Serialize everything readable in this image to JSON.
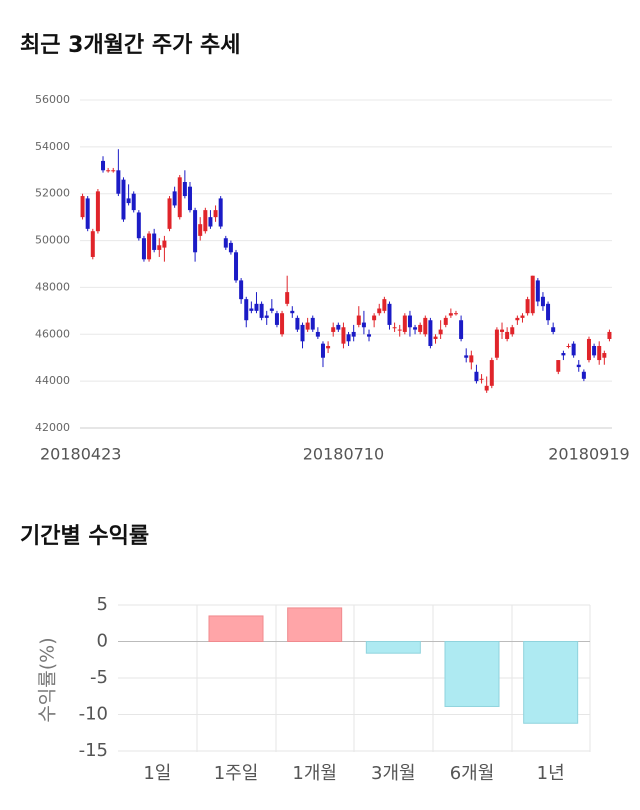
{
  "chart_data": [
    {
      "type": "candlestick",
      "title": "최근 3개월간 주가 추세",
      "categories": [
        "20180423",
        null,
        null,
        null,
        null,
        null,
        null,
        null,
        null,
        null,
        null,
        null,
        null,
        null,
        null,
        null,
        null,
        null,
        null,
        null,
        null,
        null,
        null,
        null,
        null,
        null,
        null,
        null,
        null,
        null,
        null,
        null,
        null,
        null,
        null,
        null,
        null,
        null,
        null,
        null,
        null,
        null,
        null,
        null,
        null,
        null,
        null,
        null,
        null,
        null,
        null,
        "20180710",
        null,
        null,
        null,
        null,
        null,
        null,
        null,
        null,
        null,
        null,
        null,
        null,
        null,
        null,
        null,
        null,
        null,
        null,
        null,
        null,
        null,
        null,
        null,
        null,
        null,
        null,
        null,
        null,
        null,
        null,
        null,
        null,
        null,
        null,
        null,
        null,
        null,
        null,
        null,
        null,
        null,
        null,
        null,
        null,
        null,
        null,
        null,
        "20180919",
        null,
        null,
        null,
        null
      ],
      "open": [
        51000,
        51800,
        49300,
        50400,
        53400,
        53000,
        53000,
        53000,
        52600,
        51800,
        52000,
        51200,
        50100,
        49200,
        50300,
        49600,
        49700,
        50500,
        52100,
        51000,
        52500,
        52300,
        51300,
        50200,
        50400,
        51000,
        51000,
        51800,
        50100,
        49900,
        49500,
        48300,
        47500,
        47100,
        47300,
        47300,
        46800,
        47100,
        46900,
        46000,
        47300,
        47000,
        46700,
        46400,
        46200,
        46700,
        46100,
        45600,
        45400,
        46100,
        46400,
        45600,
        46000,
        46100,
        46400,
        46500,
        46000,
        46600,
        46900,
        47000,
        47300,
        46300,
        46200,
        46100,
        46800,
        46300,
        46100,
        46000,
        46600,
        45800,
        46000,
        46400,
        46800,
        46900,
        46600,
        45100,
        44800,
        44400,
        44100,
        43600,
        43800,
        45000,
        46100,
        45800,
        46000,
        46600,
        46700,
        46900,
        46900,
        48300,
        47600,
        47300,
        46300,
        44400,
        45200,
        45500,
        45600,
        44700,
        44400,
        44900,
        45500,
        44900,
        45000,
        45800
      ],
      "high": [
        52000,
        51900,
        50500,
        52200,
        53600,
        53100,
        53100,
        53900,
        52700,
        52400,
        52100,
        51300,
        50200,
        50400,
        50500,
        50100,
        50200,
        51900,
        52300,
        52800,
        53000,
        52500,
        51400,
        51000,
        51400,
        51300,
        51500,
        51900,
        50200,
        50000,
        49600,
        48400,
        47600,
        47400,
        47800,
        47400,
        47000,
        47500,
        47000,
        47000,
        48500,
        47200,
        46800,
        46500,
        46700,
        46800,
        46300,
        45700,
        45700,
        46500,
        46500,
        46500,
        46100,
        46400,
        47200,
        47000,
        46200,
        46900,
        47300,
        47600,
        47400,
        46500,
        46400,
        46900,
        47000,
        46400,
        46500,
        46800,
        46700,
        46000,
        46600,
        46800,
        47100,
        47000,
        46800,
        45400,
        45300,
        44700,
        44300,
        44200,
        45000,
        46300,
        46500,
        46300,
        46400,
        46800,
        46900,
        47600,
        48500,
        48400,
        47800,
        47400,
        46500,
        44900,
        45300,
        45600,
        45700,
        44900,
        44500,
        45900,
        45600,
        45700,
        45300,
        46200
      ],
      "low": [
        50900,
        50400,
        49200,
        50300,
        52900,
        52900,
        52900,
        51900,
        50800,
        51500,
        51200,
        50000,
        49100,
        49100,
        49500,
        49300,
        49100,
        50400,
        51400,
        50900,
        51800,
        51200,
        49100,
        50000,
        50300,
        50500,
        50800,
        50500,
        49600,
        49400,
        48200,
        47300,
        46300,
        46900,
        46900,
        46600,
        46400,
        46900,
        46300,
        45900,
        47200,
        46700,
        46100,
        45400,
        46100,
        46100,
        45800,
        44600,
        45200,
        45900,
        46100,
        45400,
        45500,
        45700,
        46300,
        46000,
        45700,
        46300,
        46800,
        46900,
        46200,
        46100,
        45900,
        46000,
        45900,
        46000,
        46000,
        45900,
        45400,
        45600,
        45800,
        46300,
        46700,
        46800,
        45700,
        44800,
        44500,
        43900,
        43900,
        43500,
        43700,
        44900,
        45800,
        45700,
        45900,
        46400,
        46500,
        46800,
        46800,
        47200,
        47000,
        46400,
        46000,
        44300,
        44900,
        45400,
        45000,
        44400,
        44000,
        44800,
        45000,
        44700,
        44700,
        45700
      ],
      "close": [
        51900,
        50500,
        50400,
        52100,
        53000,
        53000,
        53000,
        52000,
        50900,
        51600,
        51300,
        50100,
        49200,
        50300,
        49600,
        49800,
        50000,
        51800,
        51500,
        52700,
        51900,
        51300,
        49500,
        50700,
        51300,
        50600,
        51300,
        50600,
        49700,
        49500,
        48300,
        47500,
        46600,
        47000,
        47000,
        46700,
        46700,
        47000,
        46400,
        46900,
        47800,
        46900,
        46200,
        45700,
        46500,
        46200,
        45900,
        45000,
        45500,
        46300,
        46200,
        46300,
        45700,
        45900,
        46800,
        46300,
        45900,
        46800,
        47100,
        47500,
        46400,
        46300,
        46200,
        46800,
        46300,
        46200,
        46400,
        46700,
        45500,
        45900,
        46200,
        46700,
        46900,
        46900,
        45800,
        45000,
        45100,
        44000,
        44100,
        43800,
        44900,
        46200,
        46200,
        46100,
        46300,
        46700,
        46800,
        47500,
        48500,
        47400,
        47200,
        46600,
        46100,
        44900,
        45100,
        45500,
        45100,
        44600,
        44100,
        45800,
        45100,
        45500,
        45200,
        46100
      ],
      "up_color": "#e0242a",
      "down_color": "#1b1bc6",
      "ylim": [
        42000,
        56000
      ],
      "yticks": [
        42000,
        44000,
        46000,
        48000,
        50000,
        52000,
        54000,
        56000
      ],
      "grid": true
    },
    {
      "type": "bar",
      "title": "기간별 수익률",
      "ylabel": "수익률(%)",
      "categories": [
        "1일",
        "1주일",
        "1개월",
        "3개월",
        "6개월",
        "1년"
      ],
      "values": [
        0,
        3.5,
        4.6,
        -1.6,
        -8.9,
        -11.2
      ],
      "positive_color": "#ffa5a8",
      "negative_color": "#aeeaf2",
      "ylim": [
        -15,
        5
      ],
      "yticks": [
        -15,
        -10,
        -5,
        0,
        5
      ],
      "grid": true
    }
  ]
}
